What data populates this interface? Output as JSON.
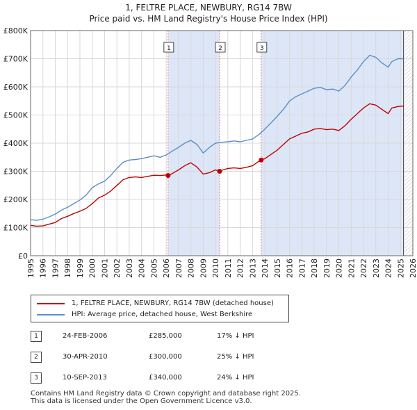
{
  "title_line1": "1, FELTRE PLACE, NEWBURY, RG14 7BW",
  "title_line2": "Price paid vs. HM Land Registry's House Price Index (HPI)",
  "colors": {
    "property_line": "#c00000",
    "hpi_line": "#5a8ecb",
    "shade": "#dde6f7",
    "marker": "#c00000",
    "vline": "#e08080",
    "grid": "#d8d8d8"
  },
  "chart_data": {
    "type": "line",
    "title": "Price paid vs. HM Land Registry's House Price Index (HPI)",
    "xlabel": "",
    "ylabel": "",
    "xlim": [
      1995,
      2026
    ],
    "ylim": [
      0,
      800000
    ],
    "x_ticks": [
      1995,
      1996,
      1997,
      1998,
      1999,
      2000,
      2001,
      2002,
      2003,
      2004,
      2005,
      2006,
      2007,
      2008,
      2009,
      2010,
      2011,
      2012,
      2013,
      2014,
      2015,
      2016,
      2017,
      2018,
      2019,
      2020,
      2021,
      2022,
      2023,
      2024,
      2025,
      2026
    ],
    "y_ticks": [
      {
        "value": 0,
        "label": "£0"
      },
      {
        "value": 100000,
        "label": "£100K"
      },
      {
        "value": 200000,
        "label": "£200K"
      },
      {
        "value": 300000,
        "label": "£300K"
      },
      {
        "value": 400000,
        "label": "£400K"
      },
      {
        "value": 500000,
        "label": "£500K"
      },
      {
        "value": 600000,
        "label": "£600K"
      },
      {
        "value": 700000,
        "label": "£700K"
      },
      {
        "value": 800000,
        "label": "£800K"
      }
    ],
    "shaded_ranges": [
      [
        2006.15,
        2010.33
      ],
      [
        2013.7,
        2025.25
      ]
    ],
    "projection_start": 2025.25,
    "series": [
      {
        "name": "1, FELTRE PLACE, NEWBURY, RG14 7BW (detached house)",
        "color": "#c00000",
        "points": [
          [
            1995.0,
            108000
          ],
          [
            1995.5,
            105000
          ],
          [
            1996.0,
            106000
          ],
          [
            1996.5,
            112000
          ],
          [
            1997.0,
            118000
          ],
          [
            1997.5,
            132000
          ],
          [
            1998.0,
            140000
          ],
          [
            1998.5,
            150000
          ],
          [
            1999.0,
            158000
          ],
          [
            1999.5,
            168000
          ],
          [
            2000.0,
            185000
          ],
          [
            2000.5,
            205000
          ],
          [
            2001.0,
            215000
          ],
          [
            2001.5,
            230000
          ],
          [
            2002.0,
            250000
          ],
          [
            2002.5,
            270000
          ],
          [
            2003.0,
            278000
          ],
          [
            2003.5,
            280000
          ],
          [
            2004.0,
            278000
          ],
          [
            2004.5,
            282000
          ],
          [
            2005.0,
            286000
          ],
          [
            2005.5,
            285000
          ],
          [
            2006.0,
            287000
          ],
          [
            2006.15,
            285000
          ],
          [
            2006.5,
            292000
          ],
          [
            2007.0,
            305000
          ],
          [
            2007.5,
            320000
          ],
          [
            2008.0,
            330000
          ],
          [
            2008.5,
            315000
          ],
          [
            2009.0,
            290000
          ],
          [
            2009.5,
            295000
          ],
          [
            2010.0,
            305000
          ],
          [
            2010.33,
            300000
          ],
          [
            2010.6,
            305000
          ],
          [
            2011.0,
            310000
          ],
          [
            2011.5,
            312000
          ],
          [
            2012.0,
            310000
          ],
          [
            2012.5,
            314000
          ],
          [
            2013.0,
            320000
          ],
          [
            2013.5,
            335000
          ],
          [
            2013.7,
            340000
          ],
          [
            2014.0,
            345000
          ],
          [
            2014.5,
            360000
          ],
          [
            2015.0,
            375000
          ],
          [
            2015.5,
            395000
          ],
          [
            2016.0,
            415000
          ],
          [
            2016.5,
            425000
          ],
          [
            2017.0,
            435000
          ],
          [
            2017.5,
            440000
          ],
          [
            2018.0,
            450000
          ],
          [
            2018.5,
            452000
          ],
          [
            2019.0,
            448000
          ],
          [
            2019.5,
            450000
          ],
          [
            2020.0,
            445000
          ],
          [
            2020.5,
            462000
          ],
          [
            2021.0,
            485000
          ],
          [
            2021.5,
            505000
          ],
          [
            2022.0,
            525000
          ],
          [
            2022.5,
            540000
          ],
          [
            2023.0,
            535000
          ],
          [
            2023.5,
            520000
          ],
          [
            2024.0,
            505000
          ],
          [
            2024.3,
            525000
          ],
          [
            2024.8,
            530000
          ],
          [
            2025.25,
            532000
          ]
        ]
      },
      {
        "name": "HPI: Average price, detached house, West Berkshire",
        "color": "#5a8ecb",
        "points": [
          [
            1995.0,
            128000
          ],
          [
            1995.5,
            126000
          ],
          [
            1996.0,
            130000
          ],
          [
            1996.5,
            138000
          ],
          [
            1997.0,
            148000
          ],
          [
            1997.5,
            162000
          ],
          [
            1998.0,
            172000
          ],
          [
            1998.5,
            185000
          ],
          [
            1999.0,
            198000
          ],
          [
            1999.5,
            215000
          ],
          [
            2000.0,
            242000
          ],
          [
            2000.5,
            255000
          ],
          [
            2001.0,
            265000
          ],
          [
            2001.5,
            285000
          ],
          [
            2002.0,
            310000
          ],
          [
            2002.5,
            332000
          ],
          [
            2003.0,
            340000
          ],
          [
            2003.5,
            342000
          ],
          [
            2004.0,
            345000
          ],
          [
            2004.5,
            350000
          ],
          [
            2005.0,
            355000
          ],
          [
            2005.5,
            350000
          ],
          [
            2006.0,
            358000
          ],
          [
            2006.5,
            372000
          ],
          [
            2007.0,
            385000
          ],
          [
            2007.5,
            400000
          ],
          [
            2008.0,
            410000
          ],
          [
            2008.5,
            395000
          ],
          [
            2009.0,
            365000
          ],
          [
            2009.5,
            385000
          ],
          [
            2010.0,
            400000
          ],
          [
            2010.5,
            403000
          ],
          [
            2011.0,
            405000
          ],
          [
            2011.5,
            408000
          ],
          [
            2012.0,
            405000
          ],
          [
            2012.5,
            410000
          ],
          [
            2013.0,
            415000
          ],
          [
            2013.5,
            430000
          ],
          [
            2014.0,
            450000
          ],
          [
            2014.5,
            472000
          ],
          [
            2015.0,
            495000
          ],
          [
            2015.5,
            520000
          ],
          [
            2016.0,
            550000
          ],
          [
            2016.5,
            565000
          ],
          [
            2017.0,
            575000
          ],
          [
            2017.5,
            585000
          ],
          [
            2018.0,
            595000
          ],
          [
            2018.5,
            598000
          ],
          [
            2019.0,
            590000
          ],
          [
            2019.5,
            592000
          ],
          [
            2020.0,
            585000
          ],
          [
            2020.5,
            605000
          ],
          [
            2021.0,
            635000
          ],
          [
            2021.5,
            660000
          ],
          [
            2022.0,
            690000
          ],
          [
            2022.5,
            712000
          ],
          [
            2023.0,
            705000
          ],
          [
            2023.5,
            685000
          ],
          [
            2024.0,
            670000
          ],
          [
            2024.3,
            690000
          ],
          [
            2024.8,
            700000
          ],
          [
            2025.25,
            700000
          ]
        ]
      }
    ],
    "sales": [
      {
        "label": "1",
        "date": "24-FEB-2006",
        "x": 2006.15,
        "price": 285000,
        "price_text": "£285,000",
        "hpi_diff": "17% ↓ HPI"
      },
      {
        "label": "2",
        "date": "30-APR-2010",
        "x": 2010.33,
        "price": 300000,
        "price_text": "£300,000",
        "hpi_diff": "25% ↓ HPI"
      },
      {
        "label": "3",
        "date": "10-SEP-2013",
        "x": 2013.7,
        "price": 340000,
        "price_text": "£340,000",
        "hpi_diff": "24% ↓ HPI"
      }
    ]
  },
  "legend": {
    "property": "1, FELTRE PLACE, NEWBURY, RG14 7BW (detached house)",
    "hpi": "HPI: Average price, detached house, West Berkshire"
  },
  "footer_line1": "Contains HM Land Registry data © Crown copyright and database right 2025.",
  "footer_line2": "This data is licensed under the Open Government Licence v3.0."
}
